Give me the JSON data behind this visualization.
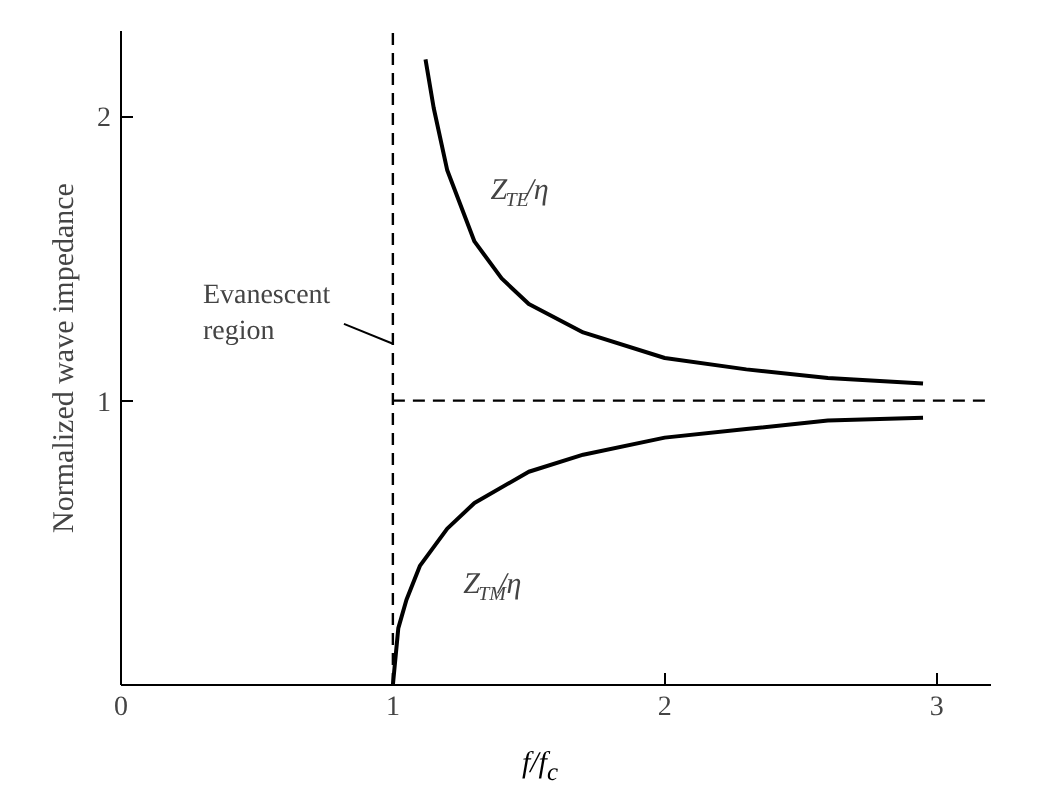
{
  "chart_data": {
    "type": "line",
    "xlabel": "f/f$_{c}$",
    "ylabel": "Normalized wave impedance",
    "xlim": [
      0,
      3.2
    ],
    "ylim": [
      0,
      2.3
    ],
    "xticks": [
      0,
      1,
      2,
      3
    ],
    "yticks": [
      1,
      2
    ],
    "grid": false,
    "legend": false,
    "line_style": "solid",
    "marker": "none",
    "series": [
      {
        "name": "Z$_{TE}$/η",
        "color": "#000000",
        "x": [
          1.12,
          1.15,
          1.2,
          1.3,
          1.4,
          1.5,
          1.7,
          2,
          2.3,
          2.6,
          2.95
        ],
        "values": [
          2.2,
          2.03,
          1.81,
          1.56,
          1.43,
          1.34,
          1.24,
          1.15,
          1.11,
          1.08,
          1.06
        ]
      },
      {
        "name": "Z$_{TM}$/η",
        "color": "#000000",
        "x": [
          1,
          1.02,
          1.05,
          1.1,
          1.2,
          1.3,
          1.5,
          1.7,
          2,
          2.3,
          2.6,
          2.95
        ],
        "values": [
          0,
          0.2,
          0.3,
          0.42,
          0.55,
          0.64,
          0.75,
          0.81,
          0.87,
          0.9,
          0.93,
          0.94
        ]
      }
    ],
    "ref_lines": [
      {
        "axis": "x",
        "value": 1,
        "line_style": "dashed",
        "color": "#000000"
      },
      {
        "axis": "y",
        "value": 1,
        "line_style": "dashed",
        "color": "#000000"
      }
    ],
    "annotations": [
      {
        "text": "Evanescent\nregion",
        "x": 1,
        "y": 1.25
      }
    ]
  }
}
